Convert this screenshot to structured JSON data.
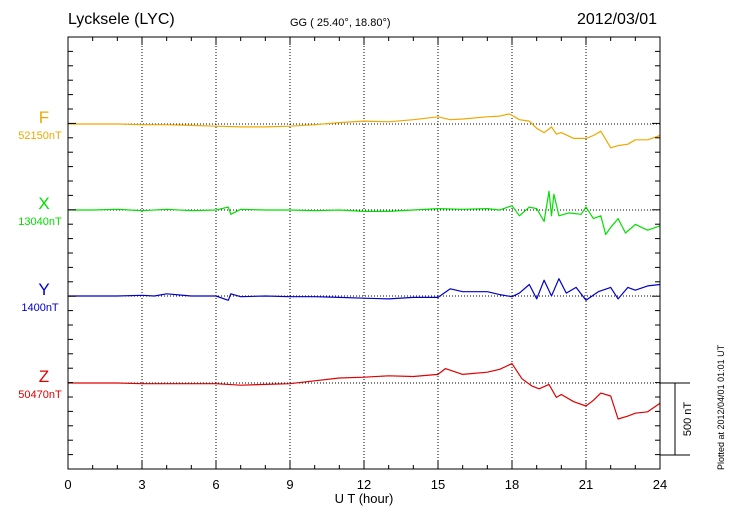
{
  "header": {
    "station": "Lycksele (LYC)",
    "coords": "GG ( 25.40°,  18.80°)",
    "date": "2012/03/01",
    "plotted_note": "Plotted at 2012/04/01 01:01 UT"
  },
  "chart_data": {
    "type": "line",
    "title": "Lycksele (LYC)",
    "xlabel": "U T (hour)",
    "ylabel": "",
    "xlim": [
      0,
      24
    ],
    "x_ticks": [
      "0",
      "3",
      "6",
      "9",
      "12",
      "15",
      "18",
      "21",
      "24"
    ],
    "scale_label": "500 nT",
    "grid": true,
    "colors": {
      "F": "#f0a800",
      "X": "#00e000",
      "Y": "#0000cc",
      "Z": "#e00000"
    },
    "series": [
      {
        "name": "F",
        "baseline_label": "52150nT",
        "color": "#f0a800",
        "x": [
          0,
          1,
          2,
          3,
          4,
          5,
          6,
          7,
          8,
          9,
          10,
          11,
          12,
          13,
          14,
          15,
          15.5,
          16,
          17,
          17.5,
          17.9,
          18.3,
          18.7,
          19,
          19.3,
          19.6,
          19.8,
          20,
          20.5,
          21,
          21.3,
          21.6,
          22,
          22.3,
          22.7,
          23,
          23.5,
          24
        ],
        "y": [
          0,
          0,
          0,
          -5,
          -5,
          -10,
          -15,
          -20,
          -20,
          -15,
          -5,
          10,
          20,
          15,
          30,
          50,
          30,
          35,
          50,
          55,
          70,
          30,
          20,
          -30,
          -60,
          -20,
          -70,
          -60,
          -100,
          -100,
          -80,
          -50,
          -165,
          -150,
          -140,
          -110,
          -110,
          -80
        ]
      },
      {
        "name": "X",
        "baseline_label": "13040nT",
        "color": "#00e000",
        "x": [
          0,
          1,
          2,
          3,
          4,
          5,
          6,
          6.5,
          6.6,
          7,
          8,
          9,
          10,
          11,
          12,
          13,
          14,
          15,
          16,
          17,
          17.5,
          18,
          18.3,
          18.7,
          19,
          19.3,
          19.5,
          19.6,
          19.7,
          19.9,
          20.3,
          20.8,
          21,
          21.3,
          21.6,
          21.8,
          22,
          22.3,
          22.6,
          23,
          23.5,
          24
        ],
        "y": [
          0,
          0,
          5,
          -5,
          5,
          -5,
          0,
          20,
          -30,
          5,
          0,
          0,
          -5,
          0,
          -10,
          -10,
          0,
          10,
          5,
          10,
          0,
          30,
          -40,
          20,
          10,
          -80,
          130,
          -40,
          110,
          -40,
          -20,
          -30,
          20,
          -60,
          -40,
          -170,
          -120,
          -60,
          -160,
          -100,
          -140,
          -110
        ]
      },
      {
        "name": "Y",
        "baseline_label": "1400nT",
        "color": "#0000cc",
        "x": [
          0,
          1,
          2,
          3,
          3.5,
          4,
          5,
          6,
          6.5,
          6.6,
          7,
          8,
          9,
          10,
          11,
          12,
          13,
          14,
          15,
          15.5,
          16,
          17,
          17.5,
          18,
          18.3,
          18.7,
          19,
          19.3,
          19.6,
          19.9,
          20.2,
          20.6,
          21,
          21.5,
          22,
          22.3,
          22.7,
          23,
          23.5,
          24
        ],
        "y": [
          0,
          0,
          0,
          5,
          0,
          15,
          0,
          0,
          -30,
          15,
          -5,
          0,
          -5,
          -5,
          -10,
          -15,
          -20,
          -10,
          -10,
          50,
          30,
          30,
          10,
          -5,
          20,
          80,
          -20,
          110,
          0,
          120,
          20,
          60,
          -30,
          30,
          60,
          -20,
          60,
          40,
          70,
          80
        ]
      },
      {
        "name": "Z",
        "baseline_label": "50470nT",
        "color": "#e00000",
        "x": [
          0,
          1,
          2,
          3,
          4,
          5,
          6,
          7,
          8,
          9,
          10,
          11,
          12,
          13,
          14,
          15,
          15.3,
          16,
          17,
          17.5,
          18,
          18.4,
          18.8,
          19.1,
          19.5,
          19.8,
          20,
          20.5,
          21,
          21.3,
          21.6,
          22,
          22.3,
          22.7,
          23,
          23.5,
          24
        ],
        "y": [
          0,
          0,
          0,
          -5,
          -5,
          -5,
          -5,
          -15,
          -10,
          -5,
          15,
          35,
          40,
          50,
          45,
          60,
          100,
          60,
          75,
          95,
          135,
          30,
          -20,
          -40,
          -10,
          -100,
          -80,
          -130,
          -160,
          -120,
          -70,
          -90,
          -250,
          -230,
          -210,
          -200,
          -140
        ]
      }
    ]
  }
}
